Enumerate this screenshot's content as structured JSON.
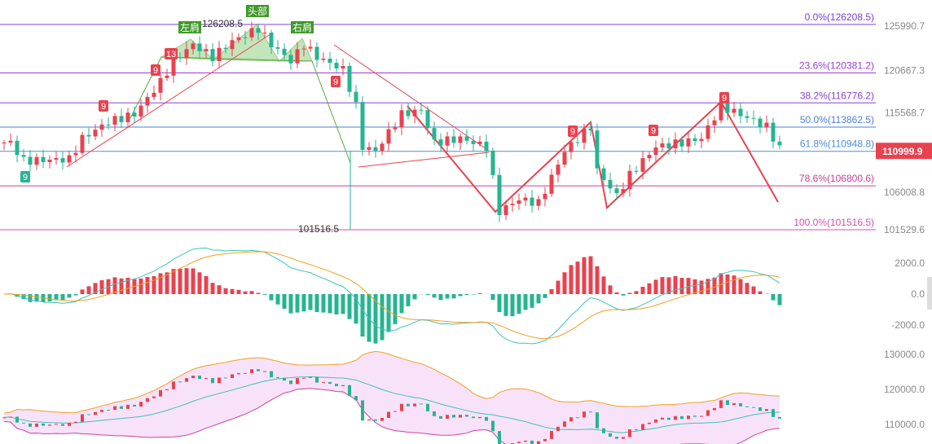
{
  "chart_data": {
    "type": "candlestick",
    "main": {
      "yaxis_ticks": [
        "125990.7",
        "120667.3",
        "115568.7",
        "110999.9",
        "106008.8",
        "101529.6"
      ],
      "last_price": "110999.9",
      "last_price_color": "#e8424f",
      "up_color": "#e8424f",
      "down_color": "#26b491",
      "high_label": "126208.5",
      "low_label": "101516.5",
      "fib_levels": [
        {
          "label": "0.0%(126208.5)",
          "price": 126208.5,
          "color": "#7b3fd0"
        },
        {
          "label": "23.6%(120381.2)",
          "price": 120381.2,
          "color": "#9c3ec9"
        },
        {
          "label": "38.2%(116776.2)",
          "price": 116776.2,
          "color": "#8a3fcf"
        },
        {
          "label": "50.0%(113862.5)",
          "price": 113862.5,
          "color": "#4a7fd6"
        },
        {
          "label": "61.8%(110948.8)",
          "price": 110948.8,
          "color": "#4a8fd8"
        },
        {
          "label": "78.6%(106800.6)",
          "price": 106800.6,
          "color": "#c8409a"
        },
        {
          "label": "100.0%(101516.5)",
          "price": 101516.5,
          "color": "#d050b0"
        }
      ],
      "price_path": [
        [
          1,
          112000
        ],
        [
          3,
          109800
        ],
        [
          10,
          110000
        ],
        [
          12,
          112500
        ],
        [
          16,
          114500
        ],
        [
          20,
          115400
        ],
        [
          24,
          119300
        ],
        [
          26,
          121800
        ],
        [
          29,
          123800
        ],
        [
          32,
          122300
        ],
        [
          35,
          124200
        ],
        [
          39,
          125700
        ],
        [
          41,
          123800
        ],
        [
          44,
          121800
        ],
        [
          46,
          123800
        ],
        [
          48,
          122300
        ],
        [
          52,
          120800
        ],
        [
          54,
          116400
        ],
        [
          55,
          111500
        ],
        [
          57,
          111000
        ],
        [
          61,
          115400
        ],
        [
          64,
          115900
        ],
        [
          66,
          112000
        ],
        [
          70,
          112500
        ],
        [
          74,
          111500
        ],
        [
          76,
          103700
        ],
        [
          79,
          105200
        ],
        [
          82,
          104700
        ],
        [
          86,
          111000
        ],
        [
          90,
          113900
        ],
        [
          91,
          108600
        ],
        [
          94,
          105600
        ],
        [
          96,
          108100
        ],
        [
          100,
          111500
        ],
        [
          104,
          112000
        ],
        [
          107,
          112500
        ],
        [
          110,
          116400
        ],
        [
          114,
          115000
        ],
        [
          117,
          113900
        ],
        [
          119,
          111300
        ]
      ],
      "pattern_labels": [
        "左肩",
        "头部",
        "右肩"
      ],
      "td_labels": [
        "9",
        "9",
        "9",
        "13",
        "9",
        "9",
        "9",
        "9"
      ]
    },
    "macd": {
      "yaxis_ticks": [
        "2000.0",
        "0.0",
        "-2000.0"
      ],
      "ylim": [
        -3000,
        3000
      ]
    },
    "boll": {
      "yaxis_ticks": [
        "130000.0",
        "120000.0",
        "110000.0"
      ]
    }
  }
}
